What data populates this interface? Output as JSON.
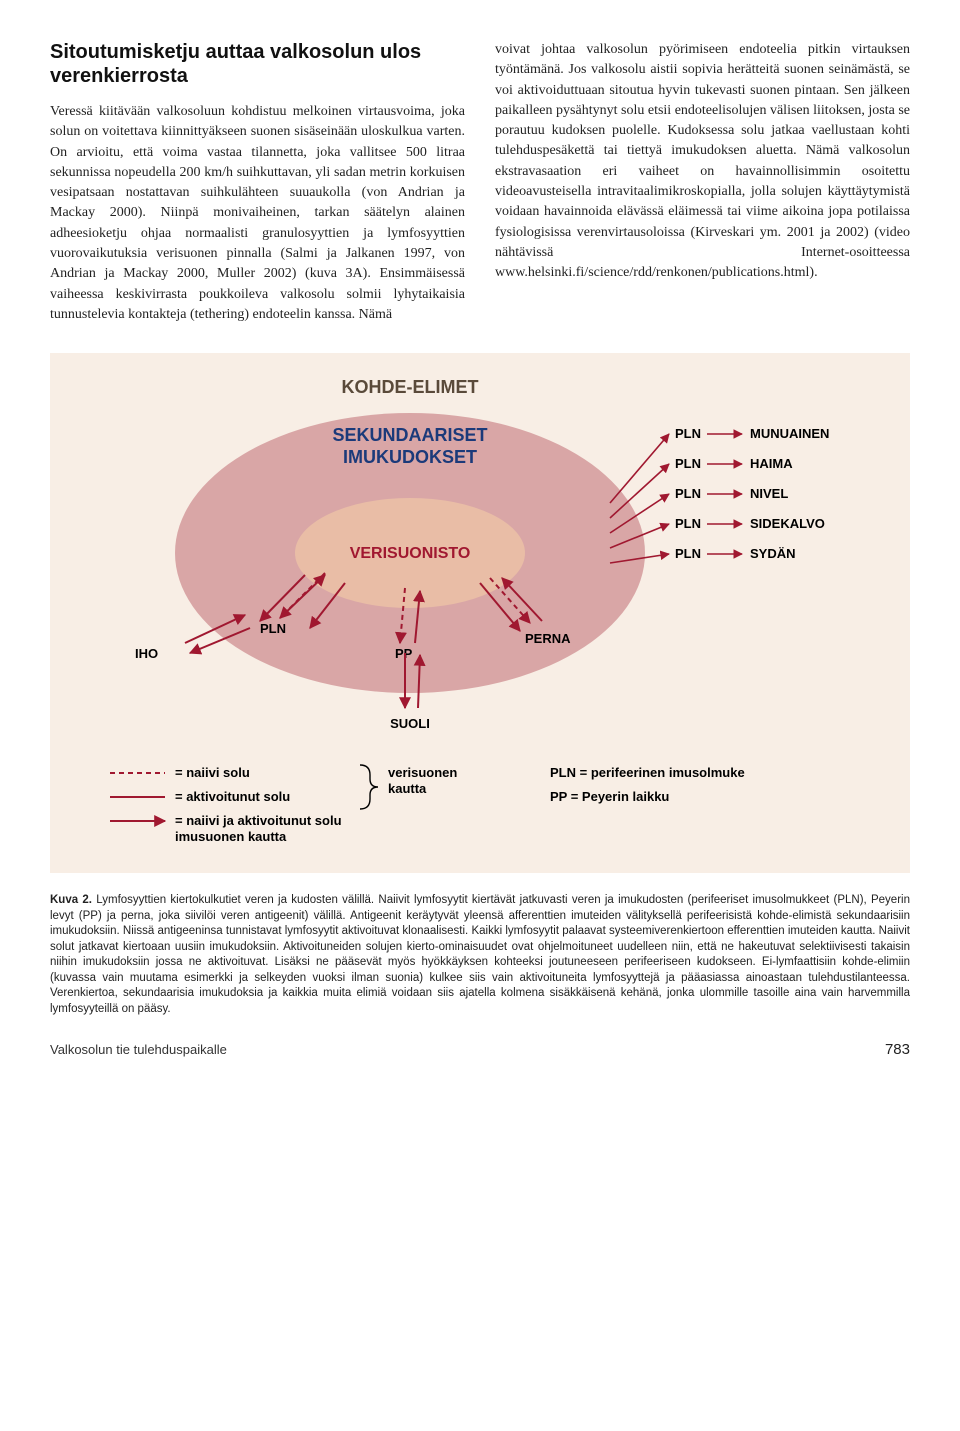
{
  "left_column": {
    "heading": "Sitoutumisketju auttaa valkosolun ulos verenkierrosta",
    "paragraph": "Veressä kiitävään valkosoluun kohdistuu melkoinen virtausvoima, joka solun on voitettava kiinnittyäkseen suonen sisäseinään uloskulkua varten. On arvioitu, että voima vastaa tilannetta, joka vallitsee 500 litraa sekunnissa nopeudella 200 km/h suihkuttavan, yli sadan metrin korkuisen vesipatsaan nostattavan suihkulähteen suuaukolla (von Andrian ja Mackay 2000). Niinpä monivaiheinen, tarkan säätelyn alainen adheesioketju ohjaa normaalisti granulosyyttien ja lymfosyyttien vuorovaikutuksia verisuonen pinnalla (Salmi ja Jalkanen 1997, von Andrian ja Mackay 2000, Muller 2002) (kuva 3A). Ensimmäisessä vaiheessa keskivirrasta poukkoileva valkosolu solmii lyhytaikaisia tunnustelevia kontakteja (tethering) endoteelin kanssa. Nämä"
  },
  "right_column": {
    "paragraph": "voivat johtaa valkosolun pyörimiseen endoteelia pitkin virtauksen työntämänä. Jos valkosolu aistii sopivia herätteitä suonen seinämästä, se voi aktivoiduttuaan sitoutua hyvin tukevasti suonen pintaan. Sen jälkeen paikalleen pysähtynyt solu etsii endoteelisolujen välisen liitoksen, josta se porautuu kudoksen puolelle. Kudoksessa solu jatkaa vaellustaan kohti tulehduspesäkettä tai tiettyä imukudoksen aluetta. Nämä valkosolun ekstravasaation eri vaiheet on havainnollisimmin osoitettu videoavusteisella intravitaalimikroskopialla, jolla solujen käyttäytymistä voidaan havainnoida elävässä eläimessä tai viime aikoina jopa potilaissa fysiologisissa verenvirtausoloissa (Kirveskari ym. 2001 ja 2002) (video nähtävissä Internet-osoitteessa www.helsinki.fi/science/rdd/renkonen/publications.html)."
  },
  "figure": {
    "bg_color": "#f8eee5",
    "ring_outer": {
      "label": "KOHDE-ELIMET",
      "fill": "#f8eee5",
      "stroke": "none",
      "label_color": "#5a4a3a",
      "label_fontsize": 18,
      "label_weight": "700"
    },
    "ring_mid": {
      "label": "SEKUNDAARISET IMUKUDOKSET",
      "fill": "#d9a6a6",
      "stroke": "none",
      "label_color": "#1b3a7a",
      "label_fontsize": 18,
      "label_weight": "700"
    },
    "ring_inner": {
      "label": "VERISUONISTO",
      "fill": "#e9bda6",
      "stroke": "none",
      "label_color": "#a01830",
      "label_fontsize": 16,
      "label_weight": "700"
    },
    "outer_labels_left": [
      {
        "text": "IHO",
        "color": "#000000"
      }
    ],
    "outer_labels_bottom": [
      {
        "text": "SUOLI",
        "color": "#000000"
      }
    ],
    "outer_labels_right_pairs": [
      {
        "left": "PLN",
        "right": "MUNUAINEN"
      },
      {
        "left": "PLN",
        "right": "HAIMA"
      },
      {
        "left": "PLN",
        "right": "NIVEL"
      },
      {
        "left": "PLN",
        "right": "SIDEKALVO"
      },
      {
        "left": "PLN",
        "right": "SYDÄN"
      }
    ],
    "mid_labels": [
      "PLN",
      "PP",
      "PERNA"
    ],
    "arrow_color_solid": "#a01830",
    "arrow_color_dashed": "#a01830",
    "legend_left": [
      {
        "style": "dashed",
        "color": "#a01830",
        "text": "= naiivi solu"
      },
      {
        "style": "solid",
        "color": "#a01830",
        "text": "= aktivoitunut solu"
      },
      {
        "style": "solid",
        "color": "#a01830",
        "text": "= naiivi ja aktivoitunut solu imusuonen kautta"
      }
    ],
    "legend_brace_label": "verisuonen kautta",
    "legend_right": [
      "PLN = perifeerinen imusolmuke",
      "PP = Peyerin laikku"
    ],
    "label_font": "Arial",
    "label_fontsize_small": 13
  },
  "caption": {
    "lead": "Kuva 2.",
    "text": "Lymfosyyttien kiertokulkutiet veren ja kudosten välillä. Naiivit lymfosyytit kiertävät jatkuvasti veren ja imukudosten (perifeeriset imusolmukkeet (PLN), Peyerin levyt (PP) ja perna, joka siivilöi veren antigeenit) välillä. Antigeenit keräytyvät yleensä afferenttien imuteiden välityksellä perifeerisistä kohde-elimistä sekundaarisiin imukudoksiin. Niissä antigeeninsa tunnistavat lymfosyytit aktivoituvat klonaalisesti. Kaikki lymfosyytit palaavat systeemiverenkiertoon efferenttien imuteiden kautta. Naiivit solut jatkavat kiertoaan uusiin imukudoksiin. Aktivoituneiden solujen kierto-ominaisuudet ovat ohjelmoituneet uudelleen niin, että ne hakeutuvat selektiivisesti takaisin niihin imukudoksiin jossa ne aktivoituvat. Lisäksi ne pääsevät myös hyökkäyksen kohteeksi joutuneeseen perifeeriseen kudokseen. Ei-lymfaattisiin kohde-elimiin (kuvassa vain muutama esimerkki ja selkeyden vuoksi ilman suonia) kulkee siis vain aktivoituneita lymfosyyttejä ja pääasiassa ainoastaan tulehdustilanteessa. Verenkiertoa, sekundaarisia imukudoksia ja kaikkia muita elimiä voidaan siis ajatella kolmena sisäkkäisenä kehänä, jonka ulommille tasoille aina vain harvemmilla lymfosyyteillä on pääsy."
  },
  "footer": {
    "running_head": "Valkosolun tie tulehduspaikalle",
    "page": "783"
  }
}
